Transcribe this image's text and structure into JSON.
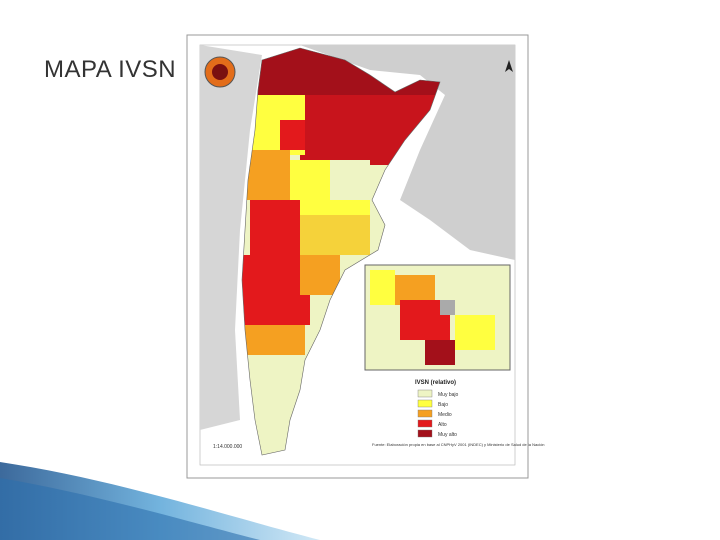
{
  "title": "MAPA IVSN",
  "map": {
    "scale": "1:14.000.000",
    "source": "Fuente: Elaboración propia en base al CNPHyV 2001 (INDEC) y Ministerio de Salud de la Nación",
    "legend": {
      "title": "IVSN (relativo)",
      "items": [
        {
          "label": "Muy bajo",
          "color": "#eef4c4"
        },
        {
          "label": "Bajo",
          "color": "#ffff40"
        },
        {
          "label": "Medio",
          "color": "#f5a021"
        },
        {
          "label": "Alto",
          "color": "#e3191c"
        },
        {
          "label": "Muy alto",
          "color": "#a3101a"
        }
      ]
    }
  }
}
